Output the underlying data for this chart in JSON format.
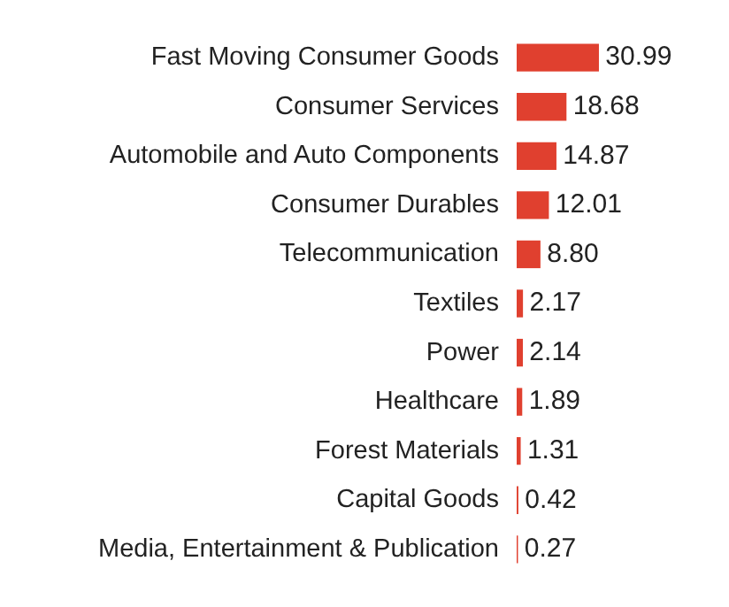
{
  "chart_data": {
    "type": "bar",
    "orientation": "horizontal",
    "categories": [
      "Fast Moving Consumer Goods",
      "Consumer Services",
      "Automobile and Auto Components",
      "Consumer Durables",
      "Telecommunication",
      "Textiles",
      "Power",
      "Healthcare",
      "Forest Materials",
      "Capital Goods",
      "Media, Entertainment & Publication"
    ],
    "values": [
      30.99,
      18.68,
      14.87,
      12.01,
      8.8,
      2.17,
      2.14,
      1.89,
      1.31,
      0.42,
      0.27
    ],
    "value_labels": [
      "30.99",
      "18.68",
      "14.87",
      "12.01",
      "8.80",
      "2.17",
      "2.14",
      "1.89",
      "1.31",
      "0.42",
      "0.27"
    ],
    "color": "#e0402f",
    "grid": false,
    "legend": false
  }
}
